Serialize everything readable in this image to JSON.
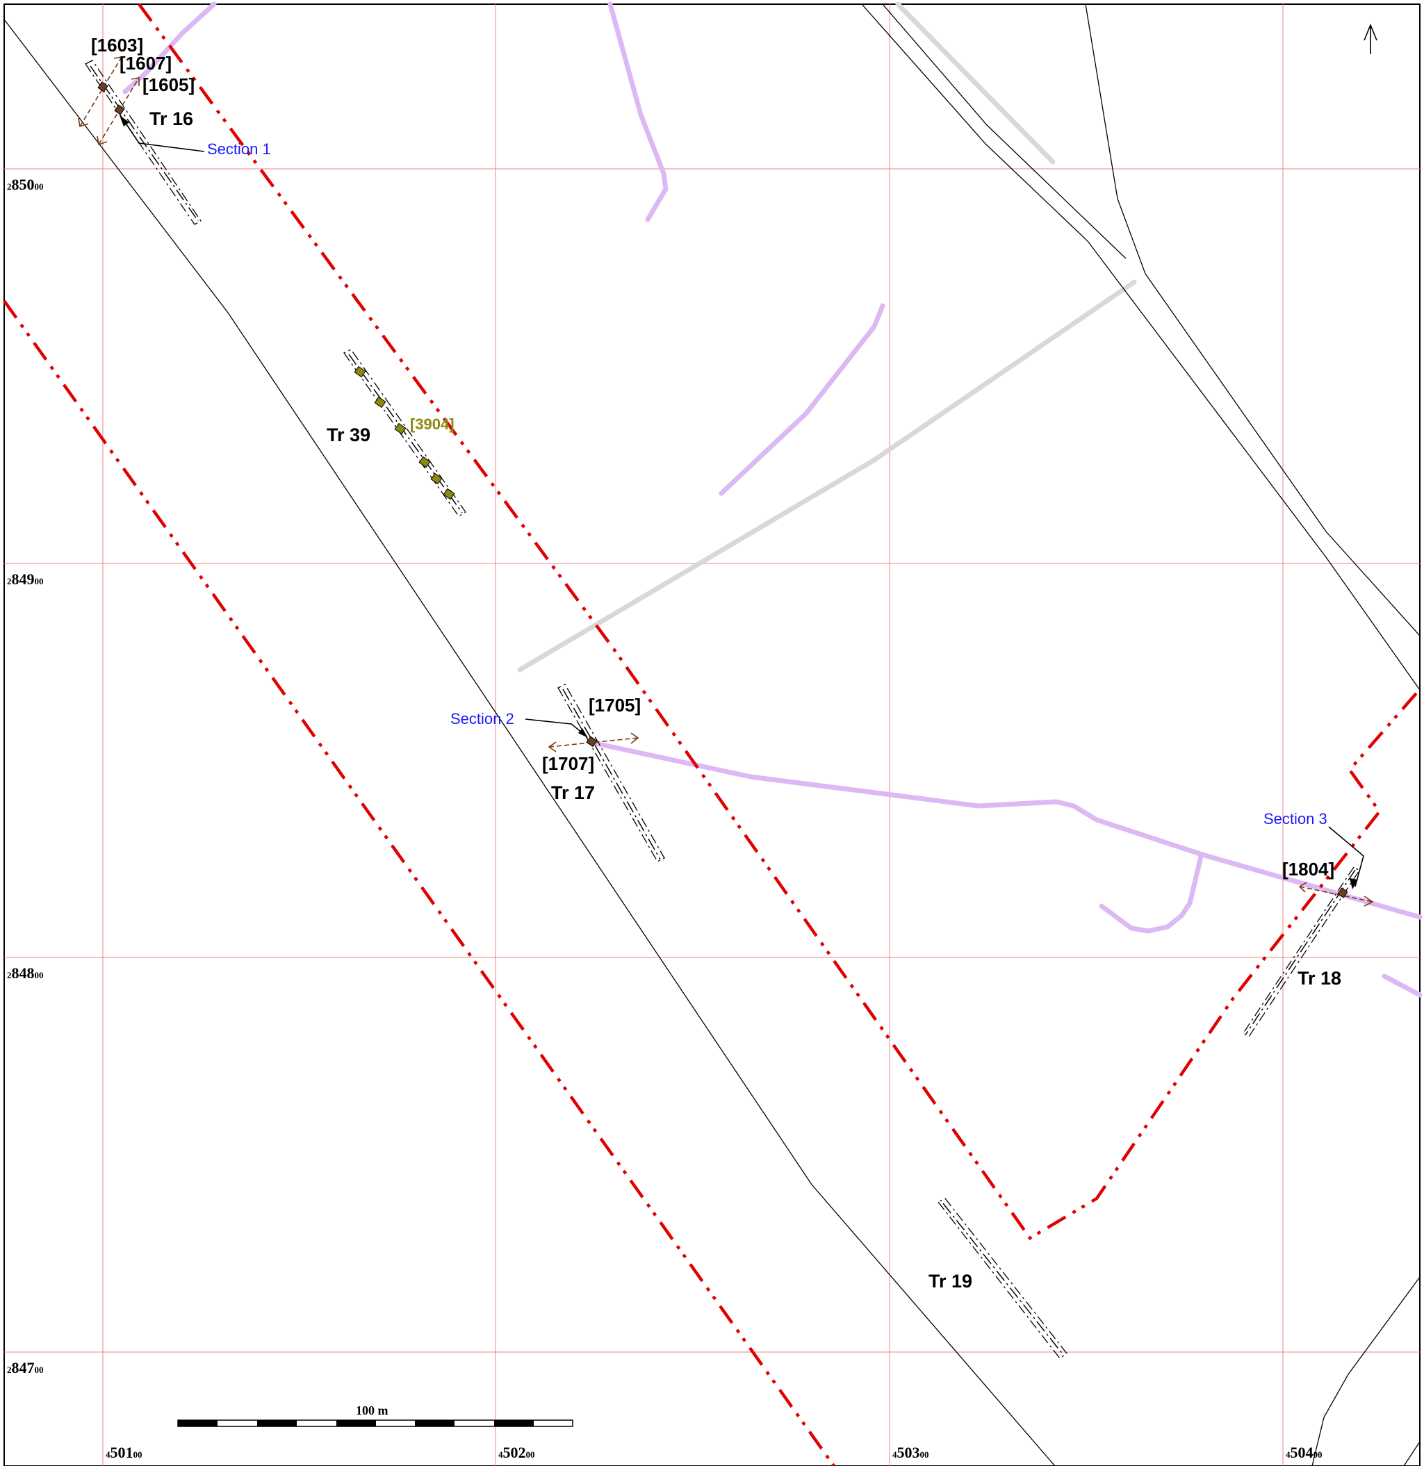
{
  "map": {
    "grid_eastings": [
      {
        "prefix": "4",
        "main": "501",
        "suffix": "00"
      },
      {
        "prefix": "4",
        "main": "502",
        "suffix": "00"
      },
      {
        "prefix": "4",
        "main": "503",
        "suffix": "00"
      },
      {
        "prefix": "4",
        "main": "504",
        "suffix": "00"
      }
    ],
    "grid_northings": [
      {
        "prefix": "2",
        "main": "850",
        "suffix": "00"
      },
      {
        "prefix": "2",
        "main": "849",
        "suffix": "00"
      },
      {
        "prefix": "2",
        "main": "848",
        "suffix": "00"
      },
      {
        "prefix": "2",
        "main": "847",
        "suffix": "00"
      }
    ],
    "trenches": [
      "Tr 16",
      "Tr 39",
      "Tr 17",
      "Tr 18",
      "Tr 19"
    ],
    "features": [
      "[1603]",
      "[1607]",
      "[1605]",
      "[3904]",
      "[1705]",
      "[1707]",
      "[1804]"
    ],
    "sections": [
      "Section 1",
      "Section 2",
      "Section 3"
    ],
    "scale_label": "100 m",
    "colors": {
      "grid": "#f08080",
      "boundary": "#e00000",
      "palaeochannel": "#dcb8f4",
      "service": "#d8d8d8",
      "linework": "#000000",
      "section_label": "#1a1aff",
      "feature_olive": "#8a8a10",
      "slot_arrow": "#7a3a10"
    }
  }
}
